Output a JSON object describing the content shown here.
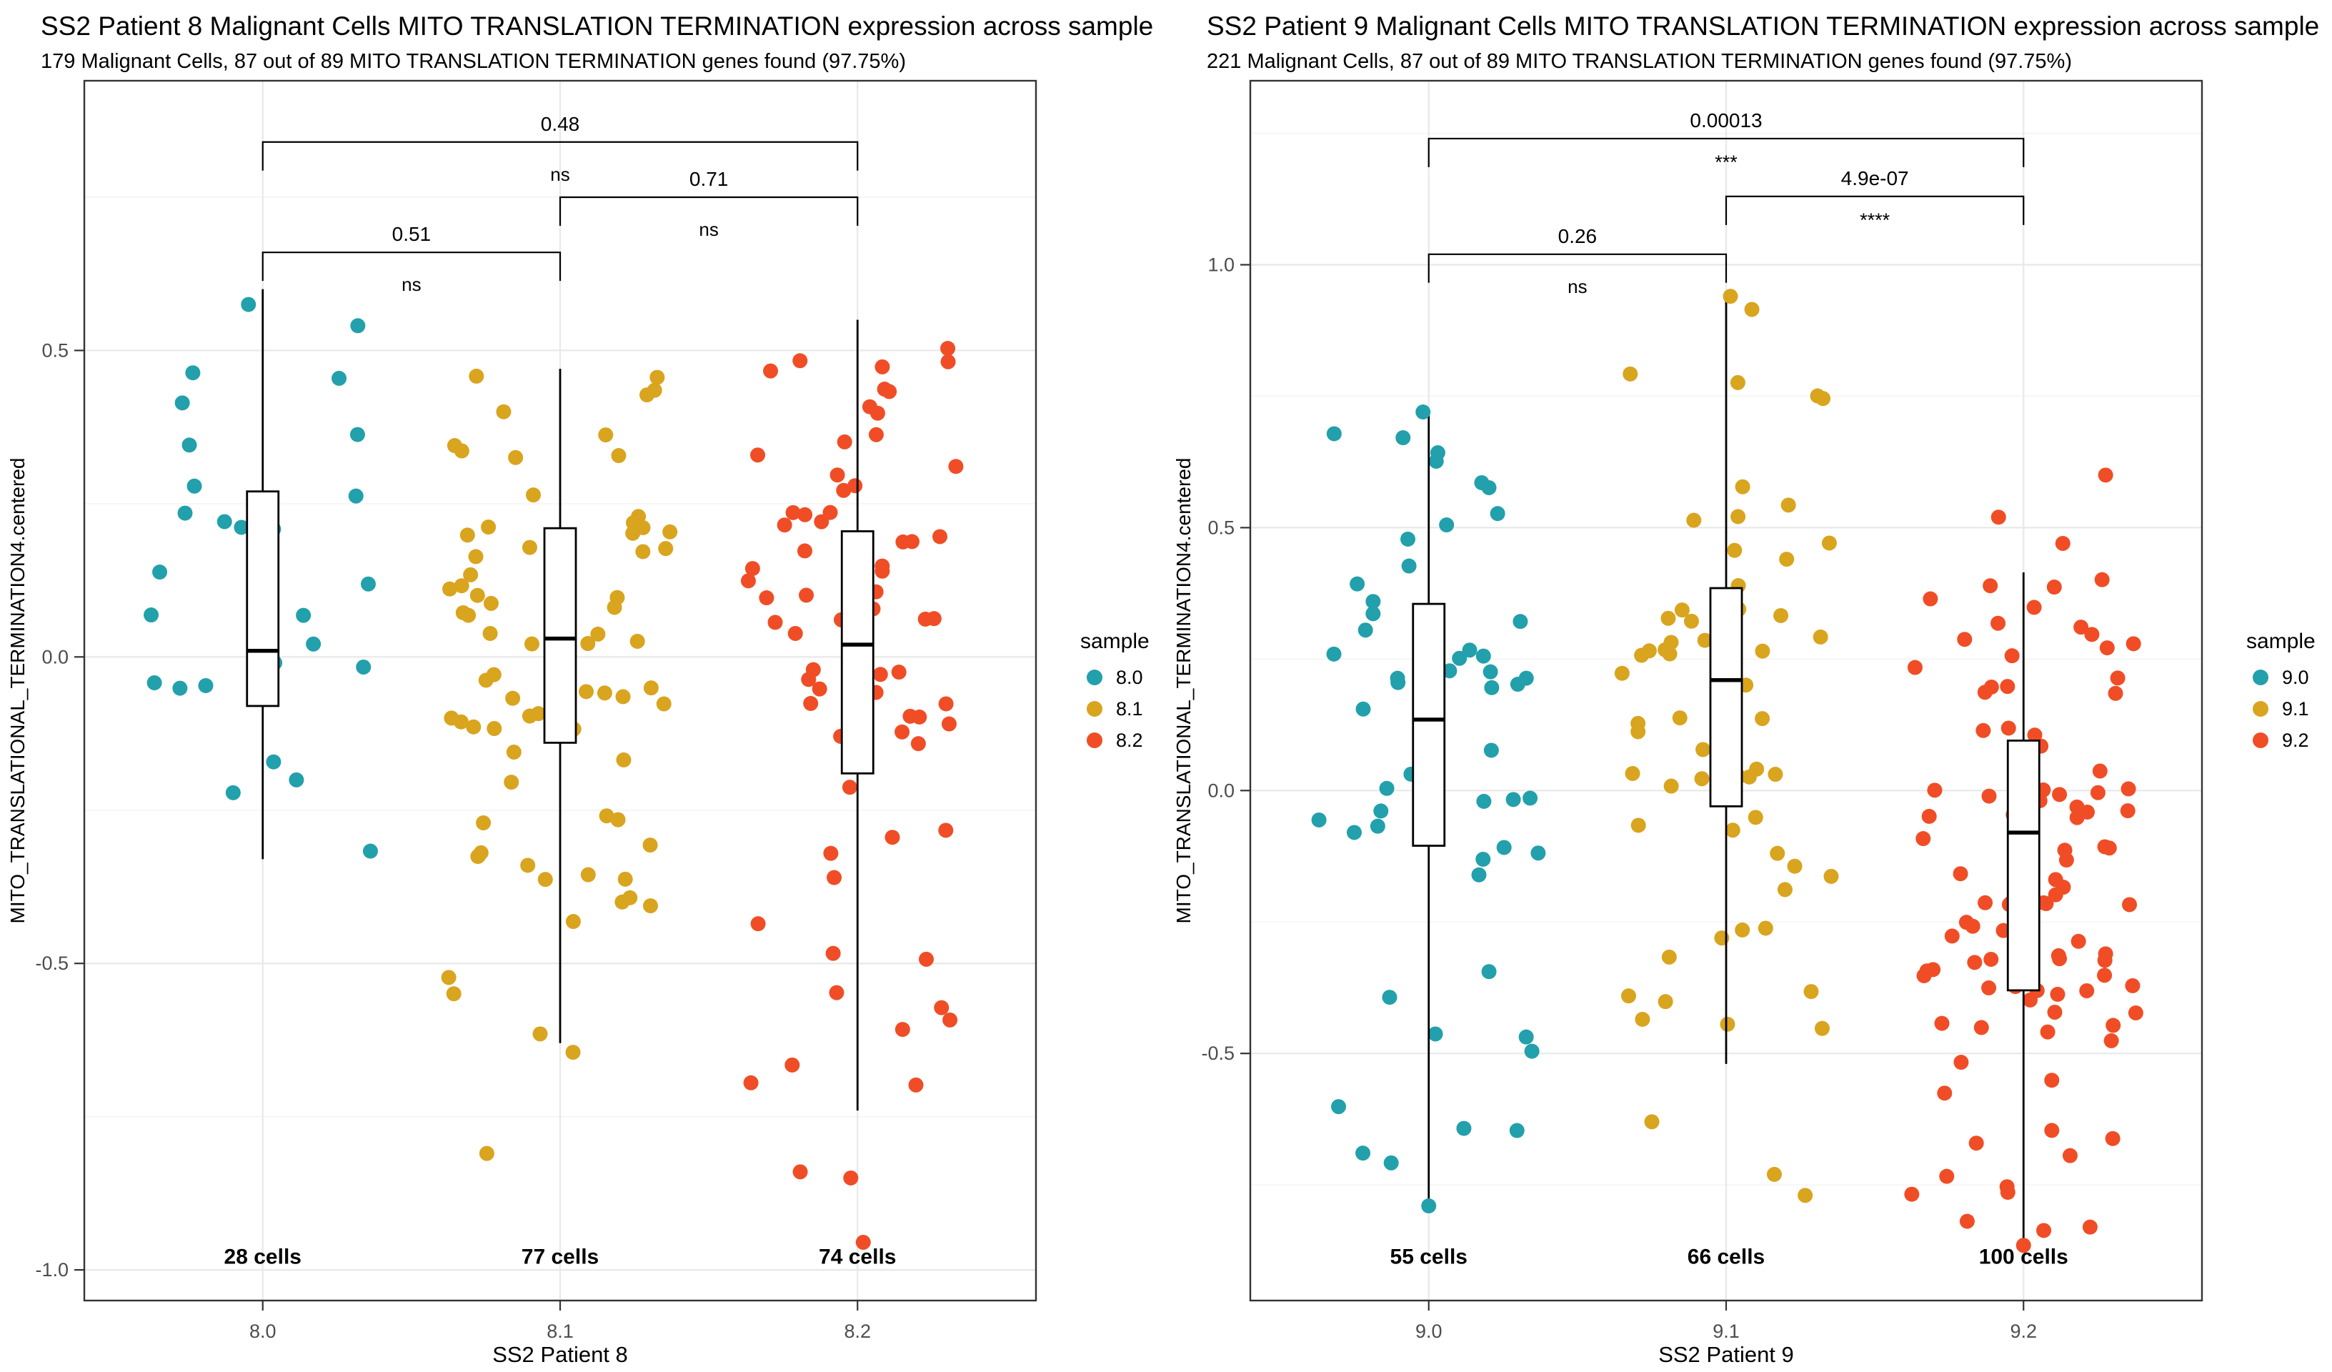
{
  "styles": {
    "background": "#ffffff",
    "panel_border": "#333333",
    "grid_major": "#e8e8e8",
    "grid_minor": "#f4f4f4",
    "axis_text": "#4d4d4d",
    "text": "#000000",
    "box_line": "#000000",
    "teal": "#22a0ac",
    "gold": "#d9a41e",
    "red": "#f04d26"
  },
  "chart_data": [
    {
      "type": "boxplot-jitter",
      "title": "SS2 Patient 8 Malignant Cells MITO TRANSLATION TERMINATION expression across sample",
      "subtitle": "179 Malignant Cells, 87 out of 89 MITO TRANSLATION TERMINATION genes found (97.75%)",
      "xlabel": "SS2 Patient 8",
      "ylabel": "MITO_TRANSLATIONAL_TERMINATION4.centered",
      "ylim": [
        -1.05,
        0.94
      ],
      "yticks": [
        {
          "v": 0.5,
          "label": "0.5"
        },
        {
          "v": 0.0,
          "label": "0.0"
        },
        {
          "v": -0.5,
          "label": "-0.5"
        },
        {
          "v": -1.0,
          "label": "-1.0"
        }
      ],
      "yticks_minor": [
        0.75,
        0.25,
        -0.25,
        -0.75
      ],
      "grid": true,
      "legend": {
        "title": "sample",
        "position": "right",
        "entries": [
          {
            "label": "8.0",
            "color": "#22a0ac"
          },
          {
            "label": "8.1",
            "color": "#d9a41e"
          },
          {
            "label": "8.2",
            "color": "#f04d26"
          }
        ]
      },
      "categories": [
        "8.0",
        "8.1",
        "8.2"
      ],
      "cells_label_y": -0.99,
      "groups": [
        {
          "sample": "8.0",
          "color": "#22a0ac",
          "n_cells": 28,
          "cells_label": "28 cells",
          "jitter_seed": 7,
          "box": {
            "whisker_low": -0.33,
            "q1": -0.08,
            "median": 0.01,
            "q3": 0.27,
            "whisker_high": 0.6
          },
          "outliers_low": [],
          "outliers_high": [],
          "tip_points": [
            {
              "y": 0.575,
              "dx": -20
            }
          ]
        },
        {
          "sample": "8.1",
          "color": "#d9a41e",
          "n_cells": 77,
          "cells_label": "77 cells",
          "jitter_seed": 13,
          "box": {
            "whisker_low": -0.63,
            "q1": -0.14,
            "median": 0.03,
            "q3": 0.21,
            "whisker_high": 0.47
          },
          "outliers_low": [
            -0.81
          ],
          "outliers_high": [],
          "tip_points": [
            {
              "y": -0.615,
              "dx": -28
            },
            {
              "y": -0.645,
              "dx": 18
            }
          ]
        },
        {
          "sample": "8.2",
          "color": "#f04d26",
          "n_cells": 74,
          "cells_label": "74 cells",
          "jitter_seed": 21,
          "box": {
            "whisker_low": -0.74,
            "q1": -0.19,
            "median": 0.02,
            "q3": 0.205,
            "whisker_high": 0.55
          },
          "outliers_low": [
            -0.84,
            -0.85
          ],
          "outliers_high": [],
          "tip_points": [
            {
              "y": -0.955,
              "dx": 8
            }
          ]
        }
      ],
      "comparisons": [
        {
          "group1": "8.0",
          "group2": "8.2",
          "p_label": "0.48",
          "sig_label": "ns",
          "bar_y": 0.84
        },
        {
          "group1": "8.1",
          "group2": "8.2",
          "p_label": "0.71",
          "sig_label": "ns",
          "bar_y": 0.75
        },
        {
          "group1": "8.0",
          "group2": "8.1",
          "p_label": "0.51",
          "sig_label": "ns",
          "bar_y": 0.66
        }
      ]
    },
    {
      "type": "boxplot-jitter",
      "title": "SS2 Patient 9 Malignant Cells MITO TRANSLATION TERMINATION expression across sample",
      "subtitle": "221 Malignant Cells, 87 out of 89 MITO TRANSLATION TERMINATION genes found (97.75%)",
      "xlabel": "SS2 Patient 9",
      "ylabel": "MITO_TRANSLATIONAL_TERMINATION4.centered",
      "ylim": [
        -0.97,
        1.35
      ],
      "yticks": [
        {
          "v": 1.0,
          "label": "1.0"
        },
        {
          "v": 0.5,
          "label": "0.5"
        },
        {
          "v": 0.0,
          "label": "0.0"
        },
        {
          "v": -0.5,
          "label": "-0.5"
        }
      ],
      "yticks_minor": [
        1.25,
        0.75,
        0.25,
        -0.25,
        -0.75
      ],
      "grid": true,
      "legend": {
        "title": "sample",
        "position": "right",
        "entries": [
          {
            "label": "9.0",
            "color": "#22a0ac"
          },
          {
            "label": "9.1",
            "color": "#d9a41e"
          },
          {
            "label": "9.2",
            "color": "#f04d26"
          }
        ]
      },
      "categories": [
        "9.0",
        "9.1",
        "9.2"
      ],
      "cells_label_y": -0.9,
      "groups": [
        {
          "sample": "9.0",
          "color": "#22a0ac",
          "n_cells": 55,
          "cells_label": "55 cells",
          "jitter_seed": 5,
          "box": {
            "whisker_low": -0.79,
            "q1": -0.105,
            "median": 0.135,
            "q3": 0.355,
            "whisker_high": 0.72
          },
          "outliers_low": [],
          "outliers_high": [],
          "tip_points": [
            {
              "y": 0.72,
              "dx": -8
            },
            {
              "y": -0.79,
              "dx": 0
            }
          ]
        },
        {
          "sample": "9.1",
          "color": "#d9a41e",
          "n_cells": 66,
          "cells_label": "66 cells",
          "jitter_seed": 17,
          "box": {
            "whisker_low": -0.52,
            "q1": -0.03,
            "median": 0.21,
            "q3": 0.385,
            "whisker_high": 0.94
          },
          "outliers_low": [
            -0.63,
            -0.73,
            -0.77
          ],
          "outliers_high": [],
          "tip_points": [
            {
              "y": 0.94,
              "dx": 6
            }
          ]
        },
        {
          "sample": "9.2",
          "color": "#f04d26",
          "n_cells": 100,
          "cells_label": "100 cells",
          "jitter_seed": 29,
          "box": {
            "whisker_low": -0.87,
            "q1": -0.38,
            "median": -0.08,
            "q3": 0.095,
            "whisker_high": 0.415
          },
          "outliers_low": [],
          "outliers_high": [
            0.6
          ],
          "tip_points": [
            {
              "y": -0.865,
              "dx": 0
            },
            {
              "y": 0.52,
              "dx": -35
            },
            {
              "y": 0.47,
              "dx": 55
            }
          ]
        }
      ],
      "comparisons": [
        {
          "group1": "9.0",
          "group2": "9.2",
          "p_label": "0.00013",
          "sig_label": "***",
          "bar_y": 1.24
        },
        {
          "group1": "9.1",
          "group2": "9.2",
          "p_label": "4.9e-07",
          "sig_label": "****",
          "bar_y": 1.13
        },
        {
          "group1": "9.0",
          "group2": "9.1",
          "p_label": "0.26",
          "sig_label": "ns",
          "bar_y": 1.02
        }
      ]
    }
  ]
}
